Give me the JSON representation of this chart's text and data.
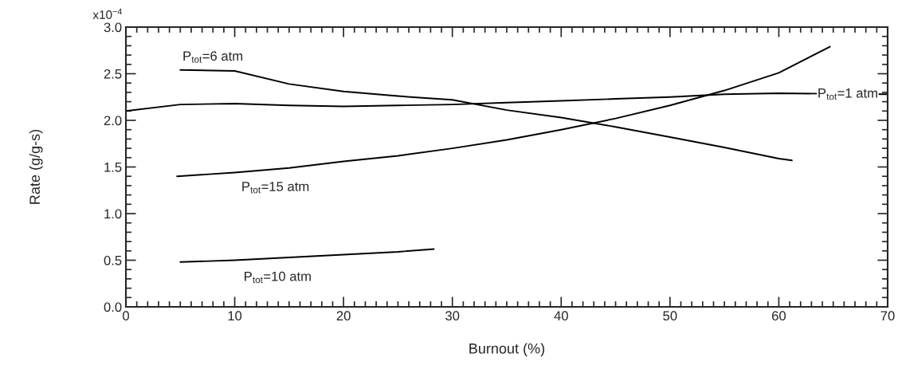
{
  "chart_data": {
    "type": "line",
    "xlabel": "Burnout (%)",
    "ylabel": "Rate (g/g-s)",
    "xlim": [
      0,
      70
    ],
    "xticks": [
      0,
      10,
      20,
      30,
      40,
      50,
      60,
      70
    ],
    "ylim": [
      0,
      3.0
    ],
    "yticks": [
      {
        "value": 0,
        "label": "0.0"
      },
      0.5,
      {
        "value": 1,
        "label": "1.0"
      },
      1.5,
      {
        "value": 2,
        "label": "2.0"
      },
      2.5,
      {
        "value": 3,
        "label": "3.0"
      }
    ],
    "annotations": [
      "x10$^{−4}$"
    ],
    "grid": false,
    "legend": false,
    "marker": "none",
    "line_style": "solid",
    "series": [
      {
        "name": "P$_{tot}$=6 atm",
        "color": "#000000",
        "x": [
          5,
          10,
          15,
          20,
          25,
          30,
          35,
          40,
          45,
          50,
          55,
          60,
          61.2
        ],
        "values": [
          2.54,
          2.53,
          2.39,
          2.31,
          2.26,
          2.22,
          2.11,
          2.03,
          1.93,
          1.82,
          1.71,
          1.59,
          1.57
        ]
      },
      {
        "name": "P$_{tot}$=1 atm",
        "color": "#000000",
        "x": [
          0,
          5,
          10,
          15,
          20,
          25,
          30,
          35,
          40,
          45,
          50,
          55,
          60,
          70
        ],
        "values": [
          2.1,
          2.17,
          2.18,
          2.16,
          2.15,
          2.16,
          2.17,
          2.19,
          2.21,
          2.23,
          2.25,
          2.28,
          2.29,
          2.28
        ]
      },
      {
        "name": "P$_{tot}$=15 atm",
        "color": "#000000",
        "x": [
          4.7,
          10,
          15,
          20,
          25,
          30,
          35,
          40,
          45,
          50,
          55,
          60,
          64.7
        ],
        "values": [
          1.4,
          1.44,
          1.49,
          1.56,
          1.62,
          1.7,
          1.79,
          1.9,
          2.02,
          2.16,
          2.32,
          2.51,
          2.79
        ]
      },
      {
        "name": "P$_{tot}$=10 atm",
        "color": "#000000",
        "x": [
          5,
          10,
          15,
          20,
          25,
          28.3
        ],
        "values": [
          0.48,
          0.5,
          0.53,
          0.56,
          0.59,
          0.62
        ]
      }
    ]
  }
}
